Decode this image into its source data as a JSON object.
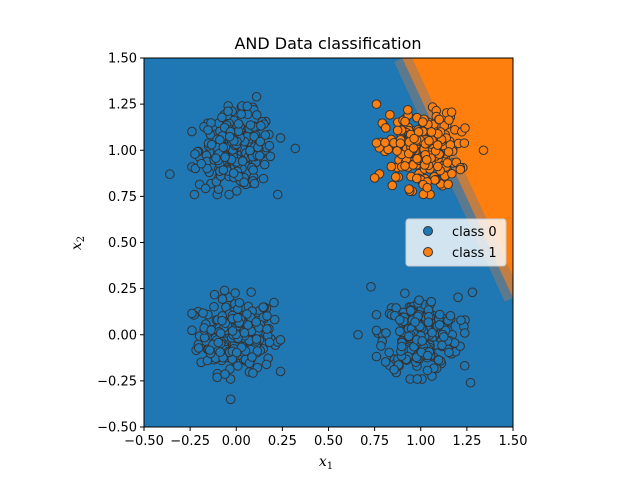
{
  "chart_data": {
    "type": "scatter",
    "title": "AND Data classification",
    "xlabel_main": "x",
    "xlabel_sub": "1",
    "ylabel_main": "x",
    "ylabel_sub": "2",
    "xlim": [
      -0.5,
      1.5
    ],
    "ylim": [
      -0.5,
      1.5
    ],
    "xticks": [
      -0.5,
      -0.25,
      0.0,
      0.25,
      0.5,
      0.75,
      1.0,
      1.25,
      1.5
    ],
    "yticks": [
      -0.5,
      -0.25,
      0.0,
      0.25,
      0.5,
      0.75,
      1.0,
      1.25,
      1.5
    ],
    "xtick_labels": [
      "−0.50",
      "−0.25",
      "0.00",
      "0.25",
      "0.50",
      "0.75",
      "1.00",
      "1.25",
      "1.50"
    ],
    "ytick_labels": [
      "−0.50",
      "−0.25",
      "0.00",
      "0.25",
      "0.50",
      "0.75",
      "1.00",
      "1.25",
      "1.50"
    ],
    "decision_boundary": {
      "description": "x2 = -x1 + 1.5 (approx)",
      "class0_color": "#1f77b4",
      "class1_color": "#ff7f0e",
      "points": [
        [
          0.9,
          1.5
        ],
        [
          1.5,
          0.2
        ]
      ]
    },
    "legend": {
      "placement": "center-right",
      "entries": [
        {
          "label": "class 0",
          "color": "#1f77b4"
        },
        {
          "label": "class 1",
          "color": "#ff7f0e"
        }
      ]
    },
    "clusters": [
      {
        "class": 0,
        "center": [
          0.0,
          0.0
        ],
        "spread": 0.1,
        "count": 250
      },
      {
        "class": 0,
        "center": [
          0.0,
          1.0
        ],
        "spread": 0.1,
        "count": 250
      },
      {
        "class": 0,
        "center": [
          1.0,
          0.0
        ],
        "spread": 0.1,
        "count": 250
      },
      {
        "class": 1,
        "center": [
          1.0,
          1.0
        ],
        "spread": 0.1,
        "count": 250
      }
    ],
    "outliers": [
      {
        "class": 0,
        "x": -0.36,
        "y": 0.87
      },
      {
        "class": 0,
        "x": 0.11,
        "y": 1.29
      },
      {
        "class": 0,
        "x": 0.32,
        "y": 1.01
      },
      {
        "class": 0,
        "x": -0.03,
        "y": -0.35
      },
      {
        "class": 0,
        "x": 0.66,
        "y": 0.0
      },
      {
        "class": 0,
        "x": 0.73,
        "y": 0.26
      },
      {
        "class": 0,
        "x": 1.28,
        "y": 0.23
      },
      {
        "class": 0,
        "x": 1.27,
        "y": -0.26
      },
      {
        "class": 1,
        "x": 0.76,
        "y": 1.25
      },
      {
        "class": 1,
        "x": 1.34,
        "y": 1.0
      },
      {
        "class": 1,
        "x": 0.75,
        "y": 0.85
      }
    ],
    "marker_edge_color": "#333333",
    "grid": false
  }
}
